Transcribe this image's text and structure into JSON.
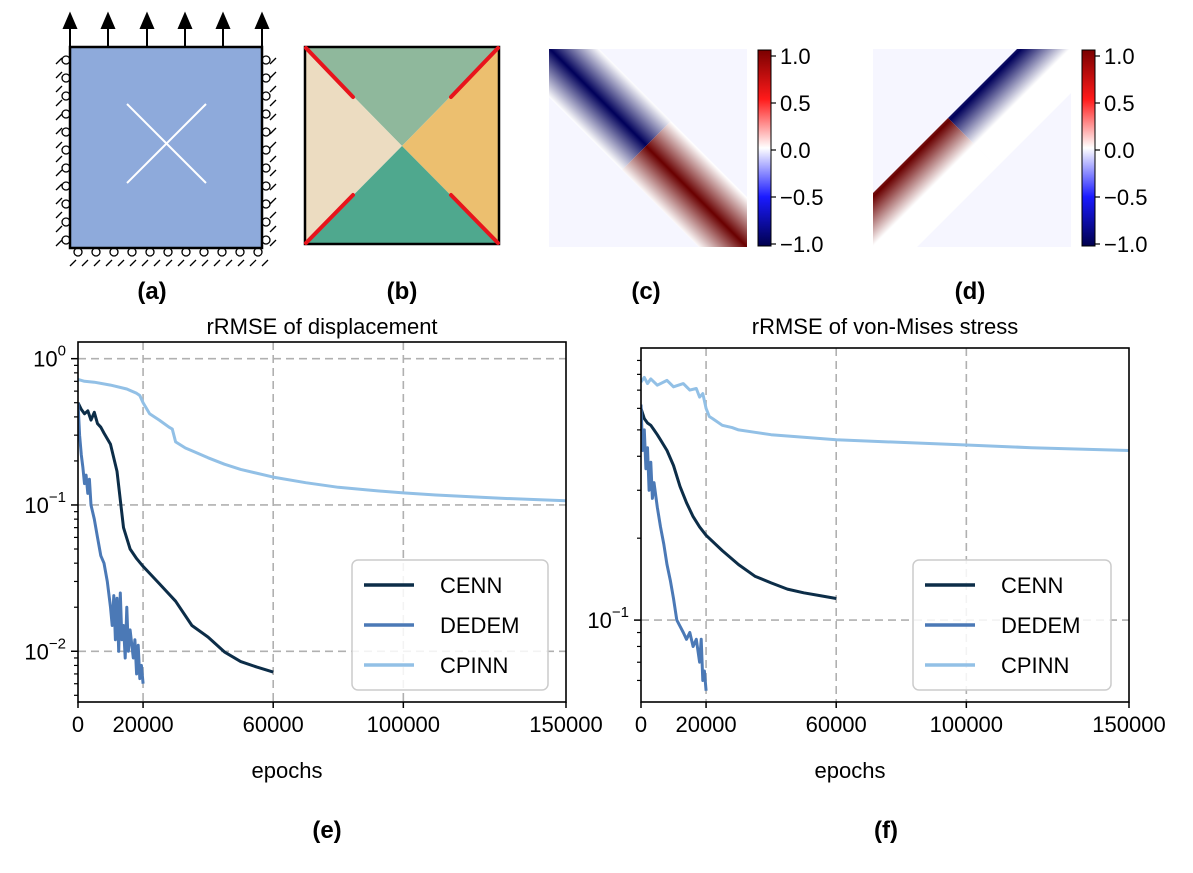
{
  "panels": {
    "a": {
      "caption": "(a)"
    },
    "b": {
      "caption": "(b)"
    },
    "c": {
      "caption": "(c)",
      "colorbar_ticks": [
        "1.0",
        "0.5",
        "0.0",
        "−0.5",
        "−1.0"
      ]
    },
    "d": {
      "caption": "(d)",
      "colorbar_ticks": [
        "1.0",
        "0.5",
        "0.0",
        "−0.5",
        "−1.0"
      ]
    },
    "e": {
      "caption": "(e)"
    },
    "f": {
      "caption": "(f)"
    }
  },
  "colors": {
    "plate": "#8eaadb",
    "CENN": "#0c2d48",
    "DEDEM": "#4b79b6",
    "CPINN": "#92c0e6",
    "crack": "#e8141c",
    "region_top": "#8fb89c",
    "region_left": "#ecdcc1",
    "region_right": "#ecbf6f",
    "region_bottom": "#4fa88e"
  },
  "chart_data": [
    {
      "id": "e",
      "type": "line",
      "title": "rRMSE of displacement",
      "xlabel": "epochs",
      "ylabel": "",
      "yscale": "log",
      "xlim": [
        0,
        150000
      ],
      "ylim": [
        0.0045,
        1.3
      ],
      "grid": true,
      "legend_position": "center-right",
      "xticks": [
        0,
        20000,
        60000,
        100000,
        150000
      ],
      "xtick_labels": [
        "0",
        "20000",
        "60000",
        "100000",
        "150000"
      ],
      "yticks": [
        {
          "value": 1,
          "base": "10",
          "exp": "0"
        },
        {
          "value": 0.1,
          "base": "10",
          "exp": "−1"
        },
        {
          "value": 0.01,
          "base": "10",
          "exp": "−2"
        }
      ],
      "series": [
        {
          "name": "CENN",
          "x": [
            0,
            1000,
            2000,
            3000,
            4000,
            5000,
            6000,
            7000,
            8000,
            10000,
            12000,
            14000,
            16000,
            18000,
            20000,
            25000,
            30000,
            35000,
            40000,
            45000,
            50000,
            55000,
            60000
          ],
          "y": [
            0.5,
            0.45,
            0.42,
            0.44,
            0.38,
            0.43,
            0.36,
            0.34,
            0.31,
            0.26,
            0.17,
            0.07,
            0.05,
            0.043,
            0.038,
            0.029,
            0.022,
            0.015,
            0.0125,
            0.0099,
            0.0085,
            0.0078,
            0.0072
          ]
        },
        {
          "name": "DEDEM",
          "x": [
            0,
            500,
            1000,
            1500,
            2000,
            2500,
            3000,
            3500,
            4000,
            5000,
            6000,
            7000,
            8000,
            9000,
            10000,
            10500,
            11000,
            11500,
            12000,
            12500,
            13000,
            13500,
            14000,
            14500,
            15000,
            15500,
            16000,
            17000,
            17500,
            18000,
            18500,
            19000,
            19500,
            20000
          ],
          "y": [
            0.5,
            0.3,
            0.22,
            0.18,
            0.14,
            0.16,
            0.12,
            0.15,
            0.1,
            0.08,
            0.06,
            0.045,
            0.04,
            0.03,
            0.02,
            0.015,
            0.024,
            0.012,
            0.023,
            0.01,
            0.025,
            0.012,
            0.015,
            0.009,
            0.02,
            0.01,
            0.014,
            0.009,
            0.012,
            0.007,
            0.011,
            0.0065,
            0.008,
            0.006
          ]
        },
        {
          "name": "CPINN",
          "x": [
            0,
            2000,
            5000,
            10000,
            15000,
            18000,
            19000,
            20000,
            22000,
            25000,
            28000,
            29000,
            30000,
            33000,
            35000,
            40000,
            45000,
            50000,
            60000,
            70000,
            80000,
            90000,
            100000,
            110000,
            120000,
            130000,
            140000,
            150000
          ],
          "y": [
            0.72,
            0.7,
            0.69,
            0.66,
            0.62,
            0.58,
            0.56,
            0.5,
            0.42,
            0.38,
            0.34,
            0.33,
            0.27,
            0.245,
            0.235,
            0.21,
            0.19,
            0.175,
            0.155,
            0.142,
            0.132,
            0.126,
            0.121,
            0.117,
            0.114,
            0.111,
            0.109,
            0.107
          ]
        }
      ]
    },
    {
      "id": "f",
      "type": "line",
      "title": "rRMSE of von-Mises stress",
      "xlabel": "epochs",
      "ylabel": "",
      "yscale": "log",
      "xlim": [
        0,
        150000
      ],
      "ylim": [
        0.05,
        1.0
      ],
      "grid": true,
      "legend_position": "center-right",
      "xticks": [
        0,
        20000,
        60000,
        100000,
        150000
      ],
      "xtick_labels": [
        "0",
        "20000",
        "60000",
        "100000",
        "150000"
      ],
      "yticks": [
        {
          "value": 0.1,
          "base": "10",
          "exp": "−1"
        }
      ],
      "series": [
        {
          "name": "CENN",
          "x": [
            0,
            1000,
            2000,
            3000,
            4000,
            5000,
            6000,
            8000,
            10000,
            12000,
            14000,
            16000,
            18000,
            20000,
            25000,
            30000,
            35000,
            40000,
            45000,
            50000,
            55000,
            60000
          ],
          "y": [
            0.6,
            0.55,
            0.53,
            0.52,
            0.5,
            0.48,
            0.46,
            0.42,
            0.37,
            0.31,
            0.27,
            0.24,
            0.22,
            0.205,
            0.18,
            0.16,
            0.145,
            0.137,
            0.13,
            0.126,
            0.123,
            0.12
          ]
        },
        {
          "name": "DEDEM",
          "x": [
            0,
            500,
            1000,
            1500,
            2000,
            2500,
            3000,
            3500,
            4000,
            5000,
            6000,
            7000,
            8000,
            9000,
            10000,
            11000,
            12000,
            13000,
            14000,
            15000,
            16000,
            17000,
            18000,
            18500,
            19000,
            19500,
            20000
          ],
          "y": [
            0.62,
            0.42,
            0.5,
            0.36,
            0.43,
            0.3,
            0.38,
            0.28,
            0.32,
            0.26,
            0.22,
            0.19,
            0.16,
            0.14,
            0.12,
            0.1,
            0.095,
            0.09,
            0.085,
            0.09,
            0.08,
            0.085,
            0.07,
            0.085,
            0.06,
            0.065,
            0.055
          ]
        },
        {
          "name": "CPINN",
          "x": [
            0,
            1000,
            2000,
            3000,
            5000,
            8000,
            10000,
            13000,
            15000,
            17000,
            18000,
            19000,
            20000,
            21000,
            22000,
            25000,
            28000,
            30000,
            35000,
            40000,
            50000,
            60000,
            80000,
            100000,
            120000,
            150000
          ],
          "y": [
            0.75,
            0.78,
            0.74,
            0.77,
            0.73,
            0.76,
            0.72,
            0.74,
            0.7,
            0.71,
            0.66,
            0.68,
            0.6,
            0.56,
            0.55,
            0.52,
            0.51,
            0.5,
            0.49,
            0.48,
            0.47,
            0.46,
            0.45,
            0.44,
            0.43,
            0.42
          ]
        }
      ]
    }
  ]
}
